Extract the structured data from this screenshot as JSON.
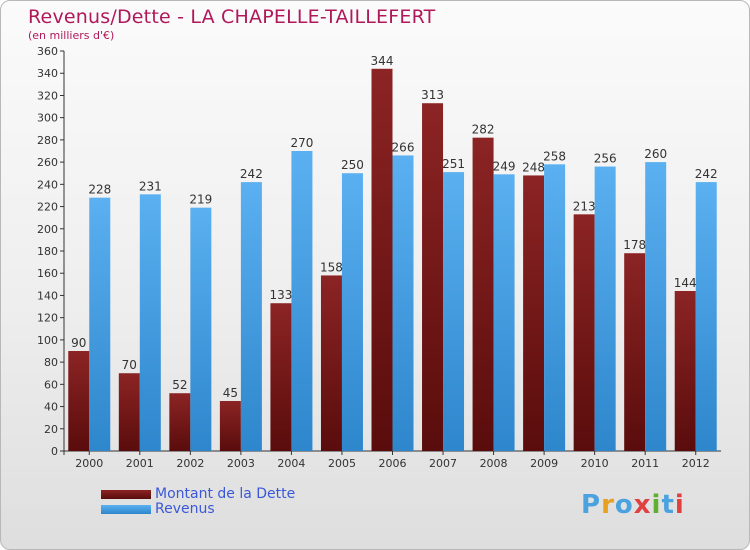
{
  "header": {
    "title": "Revenus/Dette - LA CHAPELLE-TAILLEFERT",
    "subtitle": "(en milliers d'€)"
  },
  "chart_data": {
    "type": "bar",
    "title": "Revenus/Dette - LA CHAPELLE-TAILLEFERT",
    "subtitle": "(en milliers d'€)",
    "categories": [
      "2000",
      "2001",
      "2002",
      "2003",
      "2004",
      "2005",
      "2006",
      "2007",
      "2008",
      "2009",
      "2010",
      "2011",
      "2012"
    ],
    "series": [
      {
        "name": "Montant de la Dette",
        "color": "#7a1a1a",
        "values": [
          90,
          70,
          52,
          45,
          133,
          158,
          344,
          313,
          282,
          248,
          213,
          178,
          144
        ]
      },
      {
        "name": "Revenus",
        "color": "#4ea3e8",
        "values": [
          228,
          231,
          219,
          242,
          270,
          250,
          266,
          251,
          249,
          258,
          256,
          260,
          242
        ]
      }
    ],
    "ylim": [
      0,
      360
    ],
    "yticks": [
      0,
      20,
      40,
      60,
      80,
      100,
      120,
      140,
      160,
      180,
      200,
      220,
      240,
      260,
      280,
      300,
      320,
      340,
      360
    ],
    "grid": false,
    "legend_position": "bottom-left"
  },
  "legend": {
    "items": [
      {
        "label": "Montant de la Dette",
        "color": "#7a1a1a"
      },
      {
        "label": "Revenus",
        "color": "#4ea3e8"
      }
    ]
  },
  "logo": {
    "letters": [
      "P",
      "r",
      "o",
      "x",
      "i",
      "t",
      "i"
    ],
    "colors": [
      "#4aa3df",
      "#e8a020",
      "#4aa3df",
      "#e04040",
      "#60b030",
      "#4aa3df",
      "#e04040"
    ]
  }
}
